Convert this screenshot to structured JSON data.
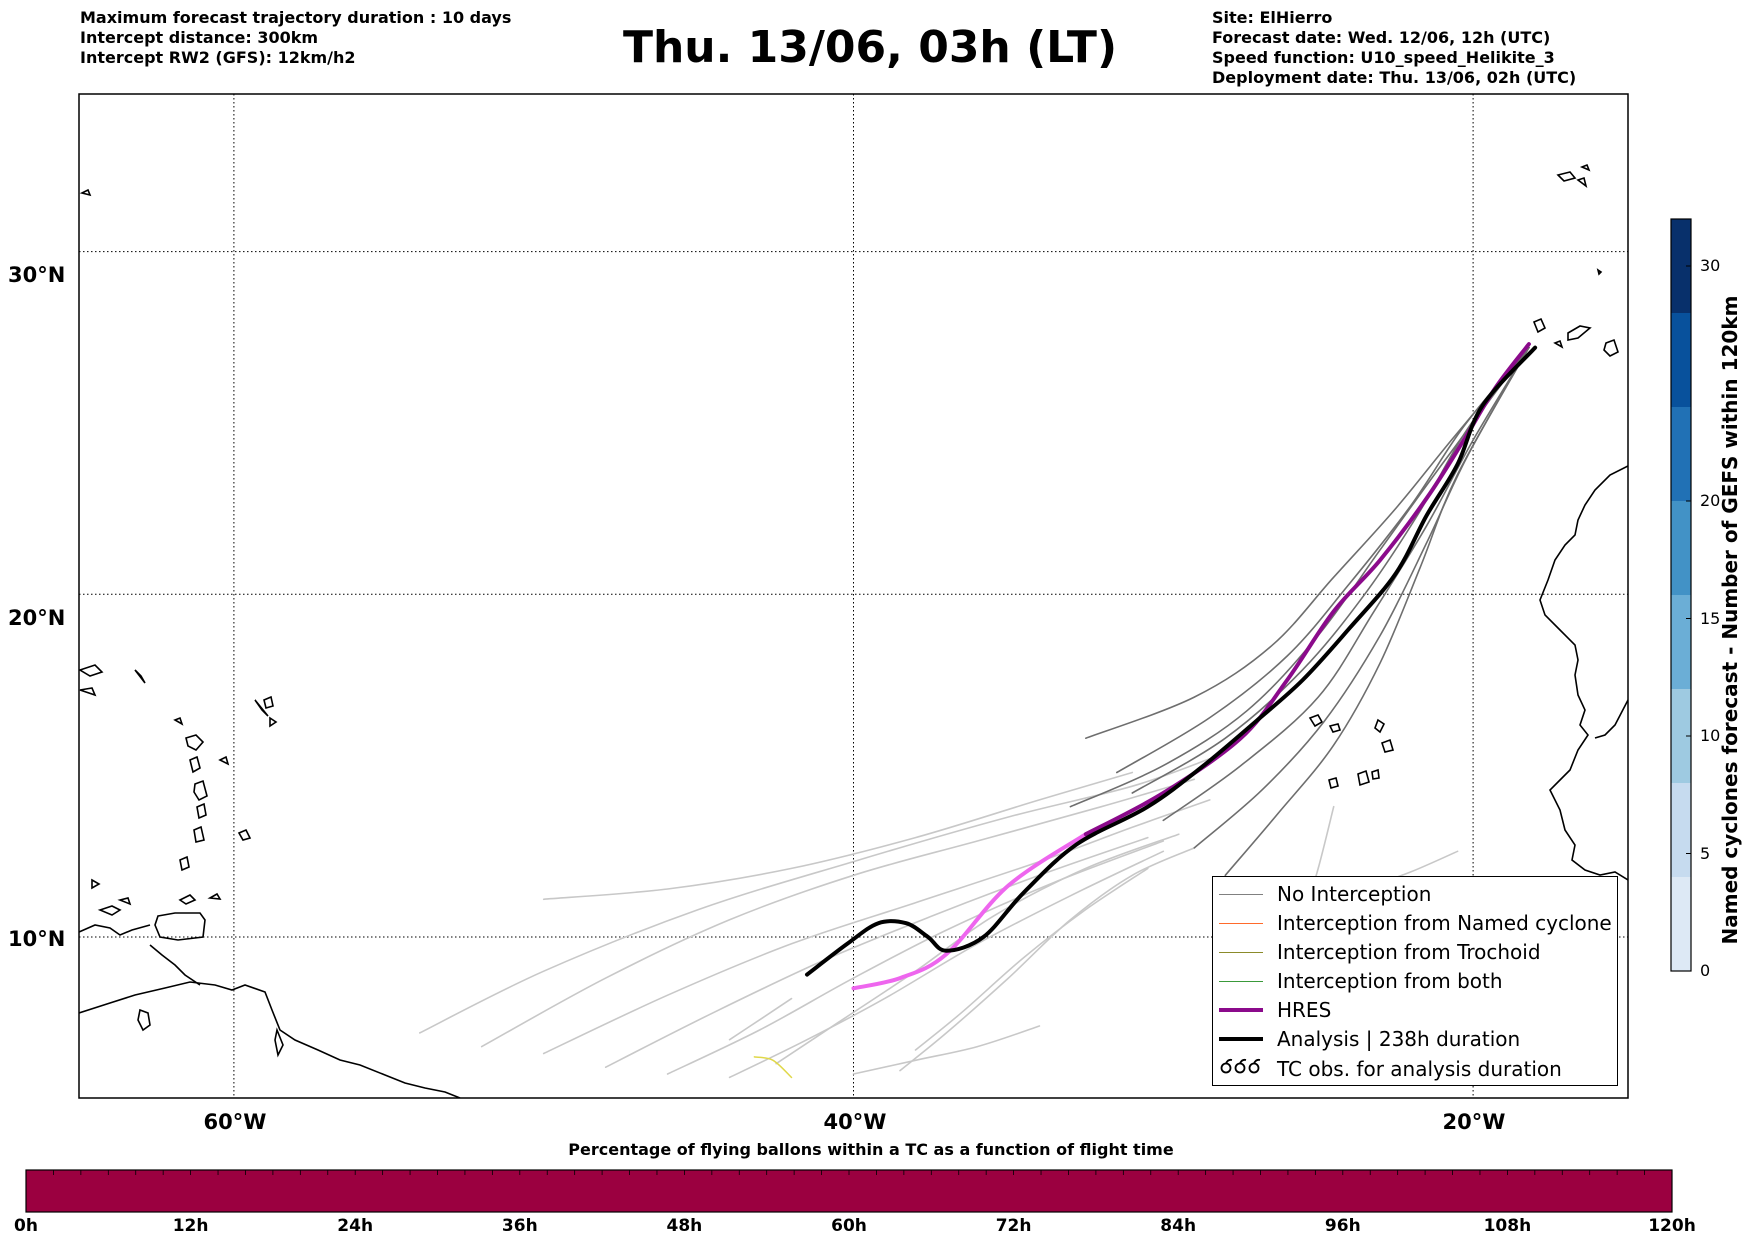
{
  "header": {
    "left_lines": [
      "Maximum forecast trajectory duration : 10 days",
      "Intercept distance: 300km",
      "Intercept RW2 (GFS):  12km/h2"
    ],
    "title": "Thu. 13/06, 03h (LT)",
    "right_lines": [
      "Site: ElHierro",
      "Forecast date: Wed. 12/06, 12h (UTC)",
      "Speed function: U10_speed_Helikite_3",
      "Deployment date: Thu. 13/06, 02h (UTC)"
    ]
  },
  "map": {
    "lat_labels": [
      "30°N",
      "20°N",
      "10°N"
    ],
    "lon_labels": [
      "60°W",
      "40°W",
      "20°W"
    ],
    "lat_values": [
      30,
      20,
      10
    ],
    "lon_values": [
      -60,
      -40,
      -20
    ],
    "lon_range": [
      -65,
      -15
    ],
    "lat_range": [
      5.3,
      34.6
    ]
  },
  "legend": {
    "items": [
      {
        "label": "No Interception",
        "color": "#808080",
        "icon": "thin-line"
      },
      {
        "label": "Interception from Named cyclone",
        "color": "#ff6a2b",
        "icon": "thin-line"
      },
      {
        "label": "Interception from Trochoid",
        "color": "#8b8b2a",
        "icon": "thin-line"
      },
      {
        "label": "Interception from both",
        "color": "#3a9a3a",
        "icon": "thin-line"
      },
      {
        "label": "HRES",
        "color": "#8b0a8b",
        "icon": "thick-line"
      },
      {
        "label": "Analysis | 238h duration",
        "color": "#000000",
        "icon": "thick-line"
      },
      {
        "label": "TC obs. for analysis duration",
        "color": "#000000",
        "icon": "tc-symbol-icon"
      }
    ]
  },
  "colorbar_right": {
    "label": "Named cyclones forecast - Number of GEFS within 120km",
    "ticks": [
      "0",
      "5",
      "10",
      "15",
      "20",
      "30"
    ],
    "tick_values": [
      0,
      5,
      10,
      15,
      20,
      30
    ],
    "range": [
      0,
      32
    ],
    "colors": [
      "#dde9f5",
      "#c6dbef",
      "#9ecae1",
      "#6baed6",
      "#4292c6",
      "#2171b5",
      "#08519c",
      "#08306b"
    ]
  },
  "colorbar_bottom": {
    "title": "Percentage of flying ballons within a TC as a function of flight time",
    "ticks": [
      "0h",
      "12h",
      "24h",
      "36h",
      "48h",
      "60h",
      "72h",
      "84h",
      "96h",
      "108h",
      "120h"
    ],
    "color": "#9b0040"
  },
  "trajectories": {
    "analysis": [
      [
        -41.5,
        8.9
      ],
      [
        -40.2,
        9.8
      ],
      [
        -39.2,
        10.4
      ],
      [
        -38.3,
        10.4
      ],
      [
        -37.6,
        10.0
      ],
      [
        -37.0,
        9.6
      ],
      [
        -35.8,
        10.0
      ],
      [
        -34.5,
        11.3
      ],
      [
        -32.8,
        12.7
      ],
      [
        -30.5,
        13.8
      ],
      [
        -28.7,
        15.0
      ],
      [
        -27.0,
        16.3
      ],
      [
        -25.5,
        17.5
      ],
      [
        -24.0,
        19.0
      ],
      [
        -22.5,
        20.6
      ],
      [
        -21.5,
        22.3
      ],
      [
        -20.5,
        23.8
      ],
      [
        -19.7,
        25.5
      ],
      [
        -18.0,
        27.2
      ]
    ],
    "hres": [
      [
        -40.0,
        8.5
      ],
      [
        -38.5,
        8.8
      ],
      [
        -37.0,
        9.5
      ],
      [
        -35.0,
        11.5
      ],
      [
        -32.5,
        13.0
      ],
      [
        -30.0,
        14.2
      ],
      [
        -27.5,
        15.8
      ],
      [
        -26.0,
        17.5
      ],
      [
        -24.5,
        19.5
      ],
      [
        -23.0,
        21.0
      ],
      [
        -21.5,
        22.8
      ],
      [
        -20.3,
        24.5
      ],
      [
        -19.3,
        26.0
      ],
      [
        -18.2,
        27.3
      ]
    ],
    "dark_members": [
      [
        [
          -32.5,
          15.8
        ],
        [
          -29.0,
          17.0
        ],
        [
          -26.5,
          18.5
        ],
        [
          -24.5,
          20.5
        ],
        [
          -22.5,
          22.5
        ],
        [
          -20.7,
          24.5
        ],
        [
          -18.2,
          27.2
        ]
      ],
      [
        [
          -31.0,
          14.2
        ],
        [
          -28.0,
          15.8
        ],
        [
          -25.5,
          17.8
        ],
        [
          -23.5,
          20.0
        ],
        [
          -21.8,
          22.3
        ],
        [
          -20.2,
          24.8
        ],
        [
          -18.2,
          27.2
        ]
      ],
      [
        [
          -30.0,
          13.4
        ],
        [
          -27.5,
          15.0
        ],
        [
          -25.0,
          17.0
        ],
        [
          -23.2,
          19.5
        ],
        [
          -21.5,
          22.0
        ],
        [
          -20.0,
          24.5
        ],
        [
          -18.2,
          27.2
        ]
      ],
      [
        [
          -29.0,
          12.6
        ],
        [
          -26.8,
          14.3
        ],
        [
          -24.8,
          16.3
        ],
        [
          -23.0,
          18.8
        ],
        [
          -21.5,
          21.5
        ],
        [
          -20.2,
          24.0
        ],
        [
          -18.2,
          27.2
        ]
      ],
      [
        [
          -28.0,
          11.8
        ],
        [
          -26.3,
          13.6
        ],
        [
          -24.5,
          15.6
        ],
        [
          -23.0,
          18.0
        ],
        [
          -21.7,
          20.8
        ],
        [
          -20.5,
          23.5
        ],
        [
          -18.2,
          27.2
        ]
      ],
      [
        [
          -31.5,
          14.8
        ],
        [
          -28.5,
          16.4
        ],
        [
          -26.0,
          18.2
        ],
        [
          -24.0,
          20.3
        ],
        [
          -22.0,
          22.6
        ],
        [
          -20.3,
          24.9
        ],
        [
          -18.2,
          27.2
        ]
      ],
      [
        [
          -33.0,
          13.8
        ],
        [
          -30.0,
          15.0
        ],
        [
          -27.3,
          16.6
        ],
        [
          -25.0,
          18.8
        ],
        [
          -23.0,
          21.3
        ],
        [
          -21.0,
          23.8
        ],
        [
          -18.2,
          27.2
        ]
      ]
    ],
    "light_members": [
      [
        [
          -54.0,
          7.2
        ],
        [
          -50.0,
          9.0
        ],
        [
          -45.0,
          10.8
        ],
        [
          -40.0,
          12.2
        ],
        [
          -35.0,
          13.5
        ],
        [
          -31.0,
          14.4
        ],
        [
          -28.5,
          15.2
        ]
      ],
      [
        [
          -52.0,
          6.8
        ],
        [
          -48.0,
          8.8
        ],
        [
          -44.0,
          10.5
        ],
        [
          -40.0,
          11.8
        ],
        [
          -36.0,
          12.8
        ],
        [
          -32.0,
          13.8
        ],
        [
          -29.0,
          14.6
        ]
      ],
      [
        [
          -50.0,
          6.6
        ],
        [
          -46.0,
          8.3
        ],
        [
          -42.0,
          9.8
        ],
        [
          -38.0,
          11.0
        ],
        [
          -34.0,
          12.2
        ],
        [
          -31.0,
          13.2
        ],
        [
          -28.5,
          14.0
        ]
      ],
      [
        [
          -48.0,
          6.2
        ],
        [
          -44.5,
          7.8
        ],
        [
          -41.0,
          9.3
        ],
        [
          -37.5,
          10.6
        ],
        [
          -34.0,
          11.8
        ],
        [
          -30.5,
          12.9
        ]
      ],
      [
        [
          -46.0,
          6.0
        ],
        [
          -43.0,
          7.3
        ],
        [
          -40.0,
          8.8
        ],
        [
          -37.0,
          10.2
        ],
        [
          -33.5,
          11.6
        ],
        [
          -30.0,
          12.8
        ]
      ],
      [
        [
          -44.0,
          5.9
        ],
        [
          -41.5,
          7.0
        ],
        [
          -39.0,
          8.2
        ],
        [
          -36.0,
          9.8
        ],
        [
          -33.0,
          11.2
        ],
        [
          -30.0,
          12.5
        ]
      ],
      [
        [
          -42.5,
          6.3
        ],
        [
          -40.5,
          7.5
        ],
        [
          -38.0,
          9.0
        ],
        [
          -35.5,
          10.6
        ],
        [
          -32.5,
          12.0
        ],
        [
          -29.5,
          13.0
        ]
      ],
      [
        [
          -50.0,
          11.1
        ],
        [
          -46.0,
          11.4
        ],
        [
          -42.0,
          12.0
        ],
        [
          -38.0,
          12.9
        ],
        [
          -34.0,
          14.0
        ],
        [
          -31.0,
          14.8
        ]
      ],
      [
        [
          -38.5,
          6.1
        ],
        [
          -37.0,
          7.2
        ],
        [
          -35.0,
          8.8
        ],
        [
          -33.0,
          10.5
        ],
        [
          -31.0,
          11.8
        ],
        [
          -29.0,
          12.6
        ]
      ],
      [
        [
          -38.0,
          6.7
        ],
        [
          -36.5,
          7.8
        ],
        [
          -34.5,
          9.4
        ],
        [
          -32.5,
          10.8
        ],
        [
          -30.5,
          12.0
        ]
      ],
      [
        [
          -40.0,
          6.0
        ],
        [
          -38.0,
          6.4
        ],
        [
          -36.0,
          6.8
        ],
        [
          -34.0,
          7.4
        ]
      ],
      [
        [
          -24.5,
          13.8
        ],
        [
          -25.0,
          12.0
        ],
        [
          -25.5,
          10.5
        ]
      ],
      [
        [
          -27.2,
          8.1
        ],
        [
          -26.0,
          10.0
        ],
        [
          -24.0,
          11.2
        ],
        [
          -22.0,
          11.9
        ],
        [
          -20.5,
          12.5
        ]
      ],
      [
        [
          -44.0,
          7.0
        ],
        [
          -43.0,
          7.6
        ],
        [
          -42.0,
          8.2
        ]
      ]
    ]
  }
}
